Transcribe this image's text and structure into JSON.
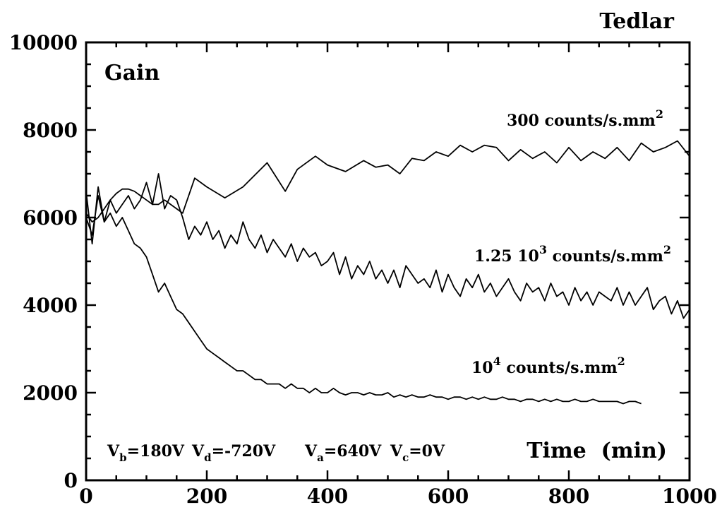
{
  "chart_data": {
    "type": "line",
    "title": "Tedlar",
    "ylabel": "Gain",
    "xlabel": "Time  (min)",
    "xlim": [
      0,
      1000
    ],
    "ylim": [
      0,
      10000
    ],
    "x_ticks": [
      0,
      200,
      400,
      600,
      800,
      1000
    ],
    "y_ticks": [
      0,
      2000,
      4000,
      6000,
      8000,
      10000
    ],
    "x_tick_labels": [
      "0",
      "200",
      "400",
      "600",
      "800",
      "1000"
    ],
    "y_tick_labels": [
      "0",
      "2000",
      "4000",
      "6000",
      "8000",
      "10000"
    ],
    "grid": false,
    "annotations": {
      "voltages": [
        {
          "main": "V",
          "sub": "b",
          "rest": "=180V"
        },
        {
          "main": "V",
          "sub": "d",
          "rest": "=-720V"
        },
        {
          "main": "V",
          "sub": "a",
          "rest": "=640V"
        },
        {
          "main": "V",
          "sub": "c",
          "rest": "=0V"
        }
      ]
    },
    "series": [
      {
        "name": "300 counts/s.mm",
        "name_sup": "2",
        "x": [
          0,
          10,
          20,
          30,
          40,
          50,
          60,
          70,
          80,
          90,
          100,
          110,
          120,
          130,
          140,
          160,
          180,
          200,
          230,
          260,
          300,
          330,
          350,
          380,
          400,
          430,
          460,
          480,
          500,
          520,
          540,
          560,
          580,
          600,
          620,
          640,
          660,
          680,
          700,
          720,
          740,
          760,
          780,
          800,
          820,
          840,
          860,
          880,
          900,
          920,
          940,
          960,
          980,
          1000
        ],
        "y": [
          6100,
          5900,
          6000,
          6200,
          6400,
          6550,
          6650,
          6650,
          6600,
          6500,
          6400,
          6300,
          6300,
          6400,
          6300,
          6100,
          6900,
          6700,
          6450,
          6700,
          7250,
          6600,
          7100,
          7400,
          7200,
          7050,
          7300,
          7150,
          7200,
          7000,
          7350,
          7300,
          7500,
          7400,
          7650,
          7500,
          7650,
          7600,
          7300,
          7550,
          7350,
          7500,
          7250,
          7600,
          7300,
          7500,
          7350,
          7600,
          7300,
          7700,
          7500,
          7600,
          7750,
          7400
        ]
      },
      {
        "name": "1.25 10",
        "name_sup": "3",
        "name_suffix": " counts/s.mm",
        "name_suffix_sup": "2",
        "x": [
          0,
          10,
          20,
          30,
          40,
          50,
          60,
          70,
          80,
          90,
          100,
          110,
          120,
          130,
          140,
          150,
          160,
          170,
          180,
          190,
          200,
          210,
          220,
          230,
          240,
          250,
          260,
          270,
          280,
          290,
          300,
          310,
          320,
          330,
          340,
          350,
          360,
          370,
          380,
          390,
          400,
          410,
          420,
          430,
          440,
          450,
          460,
          470,
          480,
          490,
          500,
          510,
          520,
          530,
          540,
          550,
          560,
          570,
          580,
          590,
          600,
          610,
          620,
          630,
          640,
          650,
          660,
          670,
          680,
          690,
          700,
          710,
          720,
          730,
          740,
          750,
          760,
          770,
          780,
          790,
          800,
          810,
          820,
          830,
          840,
          850,
          860,
          870,
          880,
          890,
          900,
          910,
          920,
          930,
          940,
          950,
          960,
          970,
          980,
          990,
          1000
        ],
        "y": [
          6600,
          5400,
          6700,
          5900,
          6400,
          6100,
          6300,
          6500,
          6200,
          6400,
          6800,
          6300,
          7000,
          6200,
          6500,
          6400,
          6000,
          5500,
          5800,
          5600,
          5900,
          5500,
          5700,
          5300,
          5600,
          5400,
          5900,
          5500,
          5300,
          5600,
          5200,
          5500,
          5300,
          5100,
          5400,
          5000,
          5300,
          5100,
          5200,
          4900,
          5000,
          5200,
          4700,
          5100,
          4600,
          4900,
          4700,
          5000,
          4600,
          4800,
          4500,
          4800,
          4400,
          4900,
          4700,
          4500,
          4600,
          4400,
          4800,
          4300,
          4700,
          4400,
          4200,
          4600,
          4400,
          4700,
          4300,
          4500,
          4200,
          4400,
          4600,
          4300,
          4100,
          4500,
          4300,
          4400,
          4100,
          4500,
          4200,
          4300,
          4000,
          4400,
          4100,
          4300,
          4000,
          4300,
          4200,
          4100,
          4400,
          4000,
          4300,
          4000,
          4200,
          4400,
          3900,
          4100,
          4200,
          3800,
          4100,
          3700,
          3900
        ]
      },
      {
        "name": "10",
        "name_sup": "4",
        "name_suffix": " counts/s.mm",
        "name_suffix_sup": "2",
        "x": [
          0,
          10,
          20,
          30,
          40,
          50,
          60,
          70,
          80,
          90,
          100,
          110,
          120,
          130,
          140,
          150,
          160,
          170,
          180,
          190,
          200,
          210,
          220,
          230,
          240,
          250,
          260,
          270,
          280,
          290,
          300,
          310,
          320,
          330,
          340,
          350,
          360,
          370,
          380,
          390,
          400,
          410,
          420,
          430,
          440,
          450,
          460,
          470,
          480,
          490,
          500,
          510,
          520,
          530,
          540,
          550,
          560,
          570,
          580,
          590,
          600,
          610,
          620,
          630,
          640,
          650,
          660,
          670,
          680,
          690,
          700,
          710,
          720,
          730,
          740,
          750,
          760,
          770,
          780,
          790,
          800,
          810,
          820,
          830,
          840,
          850,
          860,
          870,
          880,
          890,
          900,
          910,
          920
        ],
        "y": [
          6000,
          5600,
          6500,
          5900,
          6100,
          5800,
          6000,
          5700,
          5400,
          5300,
          5100,
          4700,
          4300,
          4500,
          4200,
          3900,
          3800,
          3600,
          3400,
          3200,
          3000,
          2900,
          2800,
          2700,
          2600,
          2500,
          2500,
          2400,
          2300,
          2300,
          2200,
          2200,
          2200,
          2100,
          2200,
          2100,
          2100,
          2000,
          2100,
          2000,
          2000,
          2100,
          2000,
          1950,
          2000,
          2000,
          1950,
          2000,
          1950,
          1950,
          2000,
          1900,
          1950,
          1900,
          1950,
          1900,
          1900,
          1950,
          1900,
          1900,
          1850,
          1900,
          1900,
          1850,
          1900,
          1850,
          1900,
          1850,
          1850,
          1900,
          1850,
          1850,
          1800,
          1850,
          1850,
          1800,
          1850,
          1800,
          1850,
          1800,
          1800,
          1850,
          1800,
          1800,
          1850,
          1800,
          1800,
          1800,
          1800,
          1750,
          1800,
          1800,
          1750
        ]
      }
    ]
  }
}
